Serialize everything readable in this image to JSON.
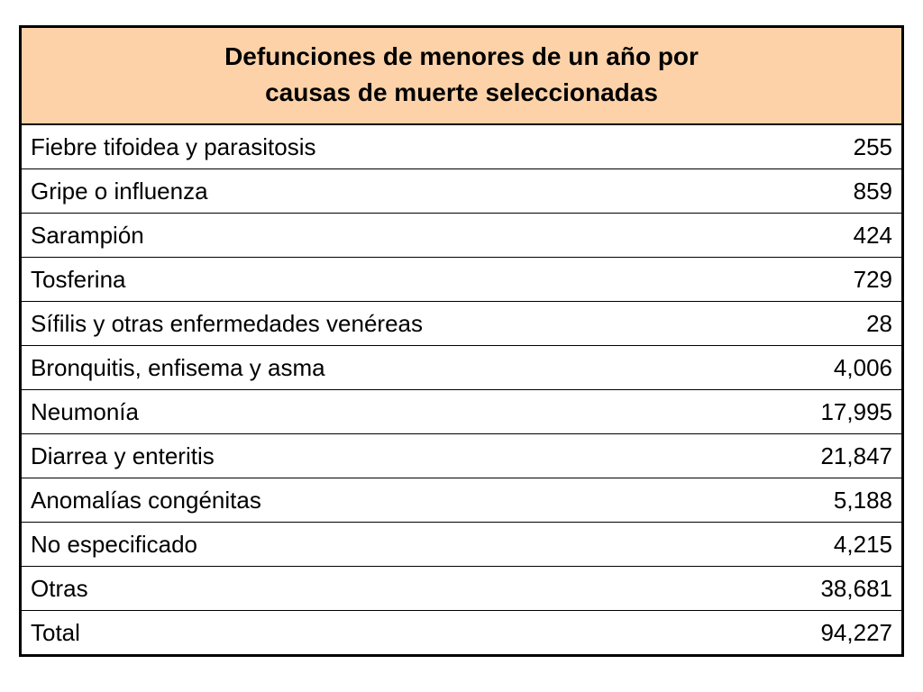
{
  "table": {
    "title_line1": "Defunciones de menores de un año por",
    "title_line2": "causas de muerte seleccionadas",
    "header_bg": "#fdd2a8",
    "rows": [
      {
        "cause": "Fiebre tifoidea y parasitosis",
        "value": "255"
      },
      {
        "cause": "Gripe o influenza",
        "value": "859"
      },
      {
        "cause": "Sarampión",
        "value": "424"
      },
      {
        "cause": "Tosferina",
        "value": "729"
      },
      {
        "cause": "Sífilis y otras enfermedades venéreas",
        "value": "28"
      },
      {
        "cause": "Bronquitis, enfisema y asma",
        "value": "4,006"
      },
      {
        "cause": "Neumonía",
        "value": "17,995"
      },
      {
        "cause": "Diarrea y enteritis",
        "value": "21,847"
      },
      {
        "cause": "Anomalías congénitas",
        "value": "5,188"
      },
      {
        "cause": "No especificado",
        "value": "4,215"
      },
      {
        "cause": "Otras",
        "value": "38,681"
      },
      {
        "cause": "Total",
        "value": "94,227"
      }
    ]
  }
}
